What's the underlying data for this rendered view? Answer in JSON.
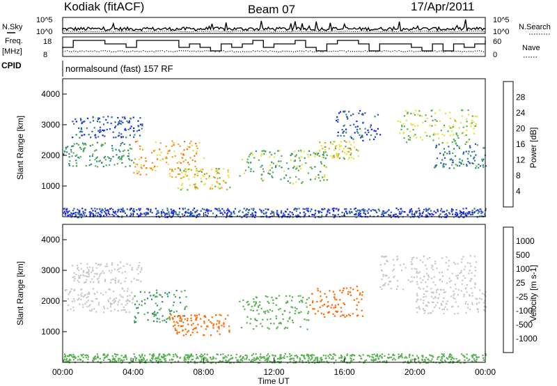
{
  "header": {
    "radar": "Kodiak (fitACF)",
    "beam": "Beam 07",
    "date": "17/Apr/2011"
  },
  "top_panels": {
    "nsky_label": "N.Sky",
    "nsearch_label": "N.Search",
    "noise_ticks": [
      "10^5",
      "10^0"
    ],
    "freq_label_1": "Freq.",
    "freq_label_2": "[MHz]",
    "freq_ticks": [
      "18",
      "8"
    ],
    "nave_label": "Nave",
    "nave_ticks": [
      "60",
      "0"
    ],
    "cpid_label": "CPID",
    "cpid_text": "normalsound (fast) 157 RF"
  },
  "colors": {
    "power_scale": [
      "#1a1aff",
      "#2d55b8",
      "#2f8a78",
      "#58b050",
      "#e8e23a",
      "#f0a020",
      "#ff6a00",
      "#ff1010"
    ],
    "velocity_scale": [
      "#ff1010",
      "#ff6a00",
      "#f0a020",
      "#c8c8c8",
      "#c8c8c8",
      "#58b050",
      "#2f8a78",
      "#1a1aff"
    ]
  },
  "chart_data": [
    {
      "type": "heatmap",
      "name": "power",
      "ylabel": "Slant Range [km]",
      "xlabel": "",
      "x_ticks": [
        "00:00",
        "04:00",
        "08:00",
        "12:00",
        "16:00",
        "20:00",
        "00:00"
      ],
      "y_ticks": [
        "1000",
        "2000",
        "3000",
        "4000"
      ],
      "ylim": [
        0,
        4500
      ],
      "xlim_hours": [
        0,
        24
      ],
      "colorbar_label": "Power [dB]",
      "colorbar_ticks": [
        "4",
        "8",
        "12",
        "16",
        "20",
        "24",
        "28"
      ],
      "colorbar_range": [
        0,
        30
      ],
      "echo_bands": [
        {
          "t0": 0.0,
          "t1": 4.0,
          "r0": 1650,
          "r1": 2450,
          "level": 12
        },
        {
          "t0": 0.5,
          "t1": 4.5,
          "r0": 2600,
          "r1": 3300,
          "level": 6
        },
        {
          "t0": 4.0,
          "t1": 8.0,
          "r0": 1300,
          "r1": 2500,
          "level": 22
        },
        {
          "t0": 6.5,
          "t1": 9.5,
          "r0": 900,
          "r1": 1600,
          "level": 18
        },
        {
          "t0": 10.0,
          "t1": 15.0,
          "r0": 1100,
          "r1": 2200,
          "level": 14
        },
        {
          "t0": 14.5,
          "t1": 16.8,
          "r0": 1900,
          "r1": 2500,
          "level": 18
        },
        {
          "t0": 15.5,
          "t1": 18.0,
          "r0": 2500,
          "r1": 3500,
          "level": 6
        },
        {
          "t0": 19.0,
          "t1": 23.5,
          "r0": 2400,
          "r1": 3500,
          "level": 16
        },
        {
          "t0": 21.0,
          "t1": 24.0,
          "r0": 1600,
          "r1": 2400,
          "level": 9
        },
        {
          "t0": 0.0,
          "t1": 24.0,
          "r0": 0,
          "r1": 300,
          "level": 5
        }
      ]
    },
    {
      "type": "heatmap",
      "name": "velocity",
      "ylabel": "Slant Range [km]",
      "xlabel": "Time UT",
      "x_ticks": [
        "00:00",
        "04:00",
        "08:00",
        "12:00",
        "16:00",
        "20:00",
        "00:00"
      ],
      "y_ticks": [
        "1000",
        "2000",
        "3000",
        "4000"
      ],
      "ylim": [
        0,
        4500
      ],
      "xlim_hours": [
        0,
        24
      ],
      "colorbar_label": "Velocity [m s-1]",
      "colorbar_ticks": [
        "1000",
        "500",
        "100",
        "25",
        "-25",
        "-100",
        "-500",
        "-1000"
      ],
      "echo_bands": [
        {
          "t0": 0.0,
          "t1": 4.0,
          "r0": 1650,
          "r1": 2450,
          "level": 0
        },
        {
          "t0": 0.5,
          "t1": 4.5,
          "r0": 2600,
          "r1": 3300,
          "level": 0
        },
        {
          "t0": 4.0,
          "t1": 7.0,
          "r0": 1300,
          "r1": 2400,
          "level": 100
        },
        {
          "t0": 6.0,
          "t1": 9.5,
          "r0": 900,
          "r1": 1600,
          "level": -300
        },
        {
          "t0": 10.0,
          "t1": 14.0,
          "r0": 1100,
          "r1": 2200,
          "level": 60
        },
        {
          "t0": 14.0,
          "t1": 17.0,
          "r0": 1500,
          "r1": 2500,
          "level": -400
        },
        {
          "t0": 18.0,
          "t1": 23.5,
          "r0": 2400,
          "r1": 3500,
          "level": 0
        },
        {
          "t0": 20.0,
          "t1": 24.0,
          "r0": 1600,
          "r1": 2400,
          "level": 0
        },
        {
          "t0": 0.0,
          "t1": 24.0,
          "r0": 0,
          "r1": 300,
          "level": 80
        }
      ]
    }
  ]
}
